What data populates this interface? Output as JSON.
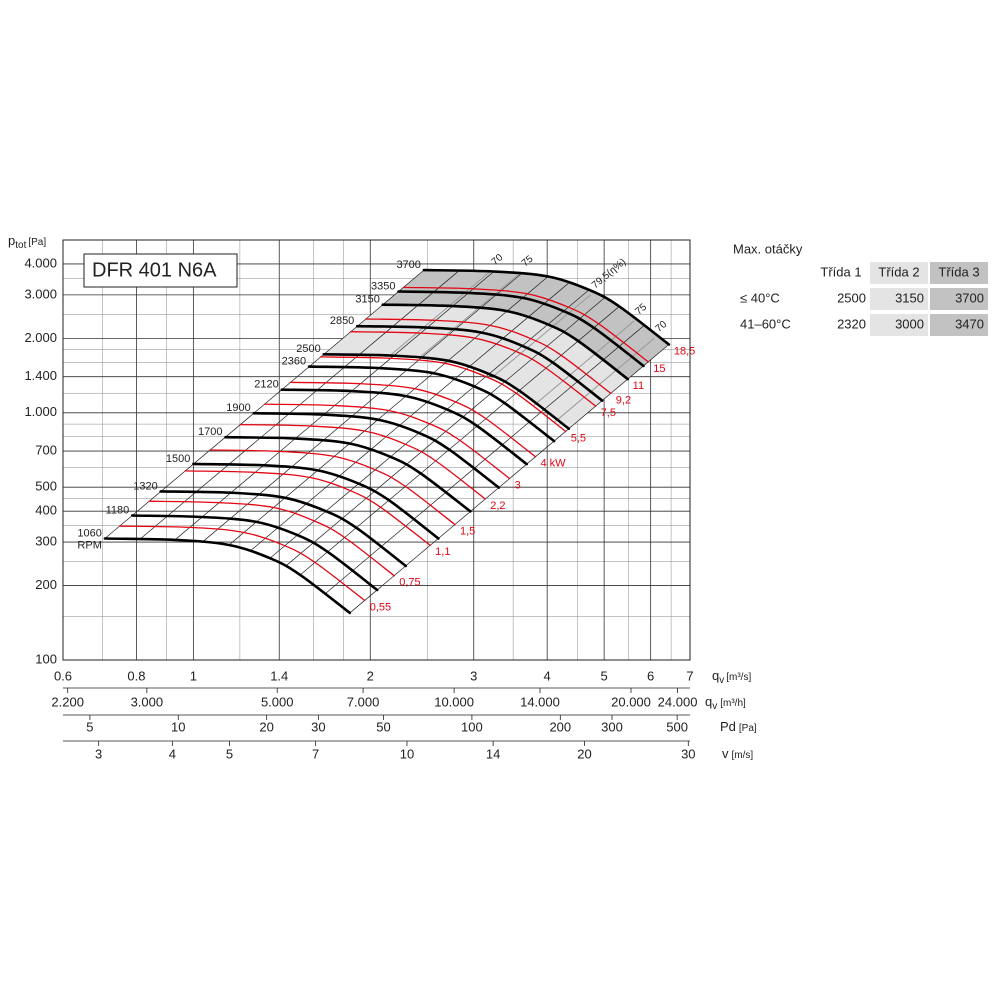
{
  "chart_data": {
    "type": "line",
    "title": "DFR 401 N6A",
    "xlog": true,
    "ylog": true,
    "grid": true,
    "ylabel": "p",
    "ylabel_sub": "tot",
    "ylabel_unit": "[Pa]",
    "ylim": [
      100,
      5000
    ],
    "yticks": [
      100,
      200,
      300,
      400,
      500,
      700,
      {
        "value": 1000,
        "label": "1.000"
      },
      {
        "value": 1400,
        "label": "1.400"
      },
      {
        "value": 2000,
        "label": "2.000"
      },
      {
        "value": 3000,
        "label": "3.000"
      },
      {
        "value": 4000,
        "label": "4.000"
      }
    ],
    "yminor": [
      150,
      250,
      350,
      450,
      600,
      800,
      900,
      1200,
      1600,
      1800,
      2500,
      3500
    ],
    "xlabel": "q",
    "xlabel_sub": "v",
    "xlabel_unit": "[m³/s]",
    "xlim": [
      0.6,
      7
    ],
    "xticks": [
      0.6,
      0.8,
      1,
      1.4,
      2,
      3,
      4,
      5,
      6,
      7
    ],
    "xminor": [
      0.7,
      0.9,
      1.2,
      1.6,
      1.8,
      2.5,
      3.5,
      4.5,
      5.5,
      6.5
    ],
    "x_axes": [
      {
        "label": "q",
        "label_sub": "v",
        "unit": "[m³/h]",
        "lim": [
          2160,
          25200
        ],
        "ticks": [
          {
            "value": 2200,
            "label": "2.200"
          },
          {
            "value": 3000,
            "label": "3.000"
          },
          {
            "value": 5000,
            "label": "5.000"
          },
          {
            "value": 7000,
            "label": "7.000"
          },
          {
            "value": 10000,
            "label": "10.000"
          },
          {
            "value": 14000,
            "label": "14.000"
          },
          {
            "value": 20000,
            "label": "20.000"
          },
          {
            "value": 24000,
            "label": "24.000"
          }
        ]
      },
      {
        "label": "Pd",
        "unit": "[Pa]",
        "lim": [
          4.05,
          553
        ],
        "ticks": [
          5,
          10,
          20,
          30,
          50,
          100,
          200,
          300,
          500
        ]
      },
      {
        "label": "v",
        "unit": "[m/s]",
        "lim": [
          2.61,
          30.2
        ],
        "ticks": [
          3,
          4,
          5,
          7,
          10,
          14,
          20,
          30
        ]
      }
    ],
    "rpm_unit": "RPM",
    "series": [
      {
        "name": "1060",
        "color": "#000000",
        "x": [
          0.707,
          0.93,
          1.15,
          1.35,
          1.52,
          1.846
        ],
        "values": [
          310,
          306,
          292,
          258,
          221,
          155
        ]
      },
      {
        "name": "1180",
        "color": "#000000",
        "x": [
          0.787,
          1.035,
          1.28,
          1.503,
          1.692,
          2.055
        ],
        "values": [
          384,
          379,
          362,
          320,
          274,
          192
        ]
      },
      {
        "name": "1320",
        "color": "#000000",
        "x": [
          0.88,
          1.158,
          1.432,
          1.681,
          1.893,
          2.299
        ],
        "values": [
          481,
          475,
          453,
          400,
          343,
          240
        ]
      },
      {
        "name": "1500",
        "color": "#000000",
        "x": [
          1.0,
          1.316,
          1.627,
          1.91,
          2.151,
          2.612
        ],
        "values": [
          621,
          613,
          585,
          517,
          443,
          310
        ]
      },
      {
        "name": "1700",
        "color": "#000000",
        "x": [
          1.134,
          1.492,
          1.844,
          2.165,
          2.438,
          2.961
        ],
        "values": [
          797,
          787,
          751,
          664,
          568,
          399
        ]
      },
      {
        "name": "1900",
        "color": "#000000",
        "x": [
          1.267,
          1.667,
          2.061,
          2.42,
          2.725,
          3.309
        ],
        "values": [
          996,
          983,
          938,
          829,
          710,
          498
        ]
      },
      {
        "name": "2120",
        "color": "#000000",
        "x": [
          1.414,
          1.86,
          2.3,
          2.7,
          3.04,
          3.692
        ],
        "values": [
          1240,
          1224,
          1168,
          1032,
          884,
          620
        ]
      },
      {
        "name": "2360",
        "color": "#000000",
        "x": [
          1.574,
          2.071,
          2.56,
          3.006,
          3.384,
          4.11
        ],
        "values": [
          1537,
          1517,
          1447,
          1279,
          1095,
          768
        ]
      },
      {
        "name": "2500",
        "color": "#000000",
        "x": [
          1.667,
          2.193,
          2.712,
          3.184,
          3.585,
          4.354
        ],
        "values": [
          1724,
          1702,
          1624,
          1435,
          1229,
          862
        ]
      },
      {
        "name": "2850",
        "color": "#000000",
        "x": [
          1.901,
          2.5,
          3.092,
          3.63,
          4.087,
          4.963
        ],
        "values": [
          2241,
          2212,
          2111,
          1865,
          1598,
          1120
        ]
      },
      {
        "name": "3150",
        "color": "#000000",
        "x": [
          2.101,
          2.764,
          3.417,
          4.012,
          4.517,
          5.486
        ],
        "values": [
          2738,
          2702,
          2579,
          2278,
          1952,
          1369
        ]
      },
      {
        "name": "3350",
        "color": "#000000",
        "x": [
          2.234,
          2.939,
          3.634,
          4.267,
          4.804,
          5.834
        ],
        "values": [
          3096,
          3056,
          2916,
          2577,
          2207,
          1548
        ]
      },
      {
        "name": "3700",
        "color": "#000000",
        "x": [
          2.468,
          3.246,
          4.014,
          4.712,
          5.306,
          6.444
        ],
        "values": [
          3777,
          3728,
          3558,
          3143,
          2693,
          1889
        ]
      }
    ],
    "power_series": [
      {
        "name": "0,55",
        "color": "#e30613",
        "x": [
          0.749,
          0.986,
          1.219,
          1.431,
          1.611,
          1.957
        ],
        "values": [
          348,
          344,
          328,
          290,
          248,
          174
        ]
      },
      {
        "name": "0,75",
        "color": "#e30613",
        "x": [
          0.841,
          1.107,
          1.369,
          1.607,
          1.809,
          2.197
        ],
        "values": [
          439,
          433,
          414,
          365,
          313,
          219
        ]
      },
      {
        "name": "1,1",
        "color": "#e30613",
        "x": [
          0.969,
          1.274,
          1.576,
          1.85,
          2.082,
          2.529
        ],
        "values": [
          582,
          574,
          548,
          484,
          415,
          291
        ]
      },
      {
        "name": "1,5",
        "color": "#e30613",
        "x": [
          1.068,
          1.404,
          1.737,
          2.039,
          2.295,
          2.787
        ],
        "values": [
          707,
          698,
          666,
          588,
          504,
          353
        ]
      },
      {
        "name": "2,2",
        "color": "#e30613",
        "x": [
          1.202,
          1.581,
          1.955,
          2.295,
          2.584,
          3.138
        ],
        "values": [
          896,
          884,
          844,
          746,
          639,
          448
        ]
      },
      {
        "name": "3",
        "color": "#e30613",
        "x": [
          1.322,
          1.739,
          2.151,
          2.525,
          2.842,
          3.452
        ],
        "values": [
          1084,
          1070,
          1021,
          902,
          773,
          542
        ]
      },
      {
        "name": "4 kW",
        "color": "#e30613",
        "x": [
          1.463,
          1.925,
          2.381,
          2.795,
          3.146,
          3.821
        ],
        "values": [
          1328,
          1311,
          1251,
          1106,
          947,
          664
        ]
      },
      {
        "name": "5,5",
        "color": "#e30613",
        "x": [
          1.647,
          2.167,
          2.68,
          3.146,
          3.542,
          4.301
        ],
        "values": [
          1683,
          1661,
          1585,
          1401,
          1200,
          841
        ]
      },
      {
        "name": "7,5",
        "color": "#e30613",
        "x": [
          1.852,
          2.437,
          3.013,
          3.537,
          3.982,
          4.837
        ],
        "values": [
          2128,
          2101,
          2004,
          1771,
          1517,
          1064
        ]
      },
      {
        "name": "9,2",
        "color": "#e30613",
        "x": [
          1.965,
          2.585,
          3.197,
          3.753,
          4.226,
          5.132
        ],
        "values": [
          2396,
          2365,
          2257,
          1994,
          1708,
          1198
        ]
      },
      {
        "name": "11",
        "color": "#e30613",
        "x": [
          2.1,
          2.762,
          3.416,
          4.01,
          4.514,
          5.483
        ],
        "values": [
          2734,
          2699,
          2576,
          2276,
          1949,
          1367
        ]
      },
      {
        "name": "15",
        "color": "#e30613",
        "x": [
          2.277,
          2.995,
          3.703,
          4.347,
          4.894,
          5.944
        ],
        "values": [
          3214,
          3173,
          3028,
          2675,
          2291,
          1607
        ]
      },
      {
        "name": "18,5",
        "color": "#e30613",
        "x": [
          2.467,
          3.246,
          4.014,
          4.712,
          5.305,
          6.443
        ],
        "values": [
          3776,
          3727,
          3557,
          3142,
          2692,
          1888
        ]
      }
    ],
    "efficiency": [
      {
        "value": 70,
        "x": [
          3.2,
          2.16
        ],
        "values": [
          3730,
          1703
        ]
      },
      {
        "value": 75,
        "x": [
          3.6,
          2.43
        ],
        "values": [
          3680,
          1680
        ]
      },
      {
        "value": 79.5,
        "label": "79,5(η%)",
        "x": [
          4.74,
          3.2
        ],
        "values": [
          3000,
          1370
        ]
      },
      {
        "value": 75,
        "x": [
          5.62,
          3.8
        ],
        "values": [
          2350,
          1073
        ]
      },
      {
        "value": 70,
        "x": [
          6.08,
          4.11
        ],
        "values": [
          2000,
          913
        ]
      }
    ]
  },
  "table": {
    "title": "Max. otáčky",
    "columns": [
      "Třída 1",
      "Třída 2",
      "Třída 3"
    ],
    "column_colors": [
      "#ffffff",
      "#e4e4e4",
      "#c2c2c2"
    ],
    "rows": [
      {
        "label": "≤ 40°C",
        "values": [
          2500,
          3150,
          3700
        ]
      },
      {
        "label": "41–60°C",
        "values": [
          2320,
          3000,
          3470
        ]
      }
    ]
  }
}
